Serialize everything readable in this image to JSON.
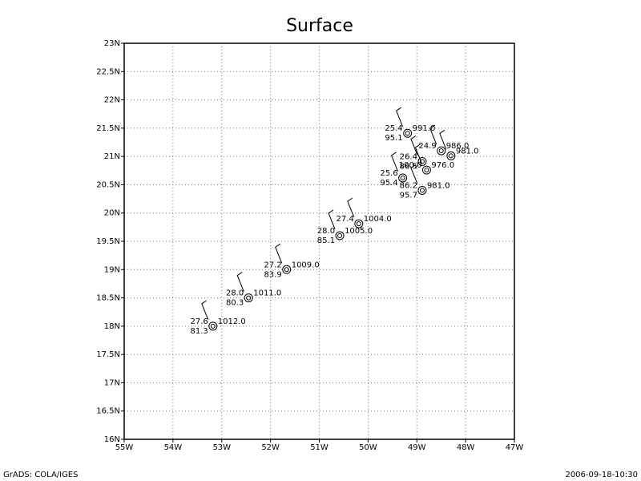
{
  "chart_data": {
    "type": "station",
    "title": "Surface",
    "xlim": [
      -55,
      -47
    ],
    "ylim": [
      16,
      23
    ],
    "xticks": [
      {
        "value": -55,
        "label": "55W"
      },
      {
        "value": -54,
        "label": "54W"
      },
      {
        "value": -53,
        "label": "53W"
      },
      {
        "value": -52,
        "label": "52W"
      },
      {
        "value": -51,
        "label": "51W"
      },
      {
        "value": -50,
        "label": "50W"
      },
      {
        "value": -49,
        "label": "49W"
      },
      {
        "value": -48,
        "label": "48W"
      },
      {
        "value": -47,
        "label": "47W"
      }
    ],
    "yticks": [
      {
        "value": 16,
        "label": "16N"
      },
      {
        "value": 16.5,
        "label": "16.5N"
      },
      {
        "value": 17,
        "label": "17N"
      },
      {
        "value": 17.5,
        "label": "17.5N"
      },
      {
        "value": 18,
        "label": "18N"
      },
      {
        "value": 18.5,
        "label": "18.5N"
      },
      {
        "value": 19,
        "label": "19N"
      },
      {
        "value": 19.5,
        "label": "19.5N"
      },
      {
        "value": 20,
        "label": "20N"
      },
      {
        "value": 20.5,
        "label": "20.5N"
      },
      {
        "value": 21,
        "label": "21N"
      },
      {
        "value": 21.5,
        "label": "21.5N"
      },
      {
        "value": 22,
        "label": "22N"
      },
      {
        "value": 22.5,
        "label": "22.5N"
      },
      {
        "value": 23,
        "label": "23N"
      }
    ],
    "grid": true,
    "stations": [
      {
        "lon": -53.18,
        "lat": 18.0,
        "temp": "27.6",
        "dew": "81.3",
        "pressure": "1012.0"
      },
      {
        "lon": -52.45,
        "lat": 18.5,
        "temp": "28.0",
        "dew": "80.3",
        "pressure": "1011.0"
      },
      {
        "lon": -51.67,
        "lat": 19.0,
        "temp": "27.2",
        "dew": "83.9",
        "pressure": "1009.0"
      },
      {
        "lon": -50.58,
        "lat": 19.6,
        "temp": "28.0",
        "dew": "85.1",
        "pressure": "1005.0"
      },
      {
        "lon": -50.19,
        "lat": 19.81,
        "temp": "27.4",
        "pressure": "1004.0"
      },
      {
        "lon": -49.19,
        "lat": 21.41,
        "temp": "25.4",
        "dew": "95.1",
        "pressure": "991.0"
      },
      {
        "lon": -48.5,
        "lat": 21.1,
        "temp": "24.9",
        "pressure": "986.0"
      },
      {
        "lon": -48.3,
        "lat": 21.01,
        "pressure": "981.0"
      },
      {
        "lon": -48.89,
        "lat": 20.91,
        "temp": "26.4",
        "dew": "86.5"
      },
      {
        "lon": -48.8,
        "lat": 20.76,
        "temp": "100.0",
        "pressure": "976.0"
      },
      {
        "lon": -49.29,
        "lat": 20.62,
        "temp": "25.6",
        "dew": "95.4"
      },
      {
        "lon": -48.89,
        "lat": 20.4,
        "temp": "86.2",
        "dew": "95.7",
        "pressure": "981.0"
      }
    ]
  },
  "footer": {
    "left": "GrADS: COLA/IGES",
    "right": "2006-09-18-10:30"
  }
}
